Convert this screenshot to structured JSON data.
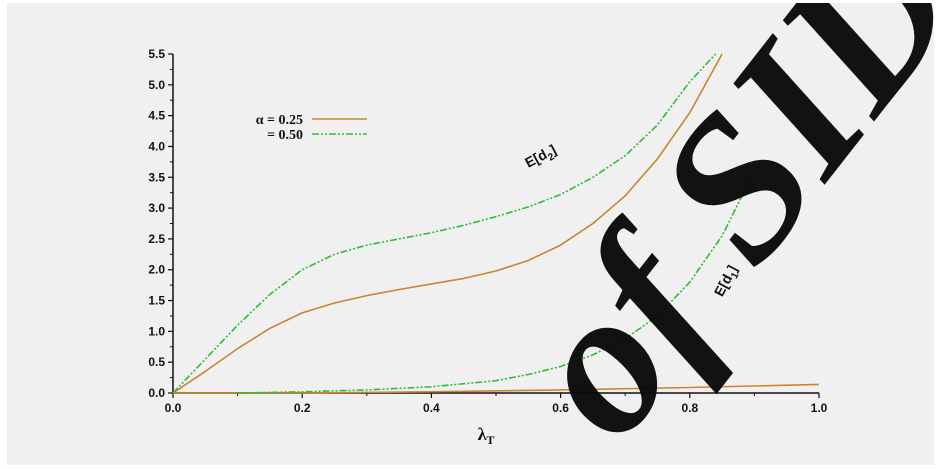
{
  "chart_data": {
    "type": "line",
    "title": "",
    "xlabel": "λ",
    "xlabel_sub": "T",
    "ylabel": "",
    "xlim": [
      0,
      1.0
    ],
    "ylim": [
      0,
      5.5
    ],
    "x_ticks": [
      "0.0",
      "0.2",
      "0.4",
      "0.6",
      "0.8",
      "1.0"
    ],
    "y_ticks": [
      "0.0",
      "0.5",
      "1.0",
      "1.5",
      "2.0",
      "2.5",
      "3.0",
      "3.5",
      "4.0",
      "4.5",
      "5.0",
      "5.5"
    ],
    "grid": false,
    "legend": {
      "placement": "top-left",
      "entries": [
        {
          "label": "α = 0.25",
          "color": "#c8862e",
          "style": "solid"
        },
        {
          "label": "= 0.50",
          "color": "#33bb33",
          "style": "dash-dot-dot"
        }
      ]
    },
    "annotations": [
      {
        "text": "E[d",
        "sub": "2",
        "close": "]",
        "x": 0.55,
        "y": 3.65,
        "rotate": -28
      },
      {
        "text": "E[d",
        "sub": "1",
        "close": "]",
        "x": 0.85,
        "y": 1.55,
        "rotate": -62
      }
    ],
    "series": [
      {
        "name": "E[d2] α=0.25",
        "legend_ref": 0,
        "x": [
          0.0,
          0.05,
          0.1,
          0.15,
          0.2,
          0.25,
          0.3,
          0.35,
          0.4,
          0.45,
          0.5,
          0.55,
          0.6,
          0.65,
          0.7,
          0.75,
          0.8,
          0.85
        ],
        "y": [
          0.0,
          0.35,
          0.72,
          1.05,
          1.3,
          1.46,
          1.58,
          1.68,
          1.77,
          1.86,
          1.98,
          2.15,
          2.4,
          2.75,
          3.2,
          3.8,
          4.55,
          5.5
        ]
      },
      {
        "name": "E[d2] α=0.50",
        "legend_ref": 1,
        "x": [
          0.0,
          0.05,
          0.1,
          0.15,
          0.2,
          0.25,
          0.3,
          0.35,
          0.4,
          0.45,
          0.5,
          0.55,
          0.6,
          0.65,
          0.7,
          0.75,
          0.8,
          0.84
        ],
        "y": [
          0.0,
          0.55,
          1.1,
          1.6,
          2.0,
          2.25,
          2.4,
          2.5,
          2.6,
          2.72,
          2.86,
          3.02,
          3.22,
          3.5,
          3.85,
          4.35,
          5.05,
          5.5
        ]
      },
      {
        "name": "E[d1] α=0.25",
        "legend_ref": 0,
        "x": [
          0.0,
          0.2,
          0.4,
          0.6,
          0.8,
          1.0
        ],
        "y": [
          0.0,
          0.0,
          0.02,
          0.05,
          0.09,
          0.14
        ]
      },
      {
        "name": "E[d1] α=0.50",
        "legend_ref": 1,
        "x": [
          0.1,
          0.2,
          0.3,
          0.4,
          0.5,
          0.55,
          0.6,
          0.65,
          0.7,
          0.75,
          0.8,
          0.85,
          0.9
        ],
        "y": [
          0.0,
          0.02,
          0.05,
          0.1,
          0.2,
          0.3,
          0.43,
          0.62,
          0.88,
          1.25,
          1.8,
          2.55,
          3.6
        ]
      }
    ]
  },
  "watermark": {
    "text": "of SID",
    "color": "#0a0a0a"
  }
}
